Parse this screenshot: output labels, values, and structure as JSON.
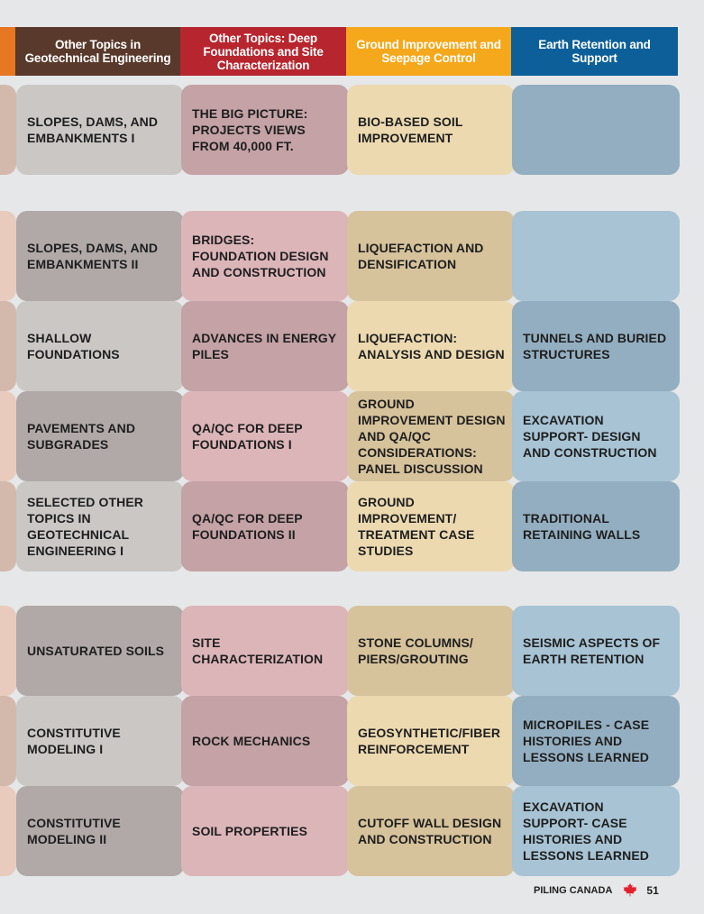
{
  "headers": {
    "col1": "Other Topics in Geotechnical Engineering",
    "col2": "Other Topics: Deep Foundations and Site Characterization",
    "col3": "Ground Improvement and Seepage Control",
    "col4": "Earth Retention and Support"
  },
  "colors": {
    "stub_header": "#e87722",
    "col1_header": "#58392b",
    "col2_header": "#b7262e",
    "col3_header": "#f5a81c",
    "col4_header": "#0c5f99",
    "leaf": "#e4202e"
  },
  "rows": {
    "r1": {
      "col1": "SLOPES, DAMS, AND EMBANKMENTS I",
      "col2": "THE BIG PICTURE: PROJECTS VIEWS FROM 40,000 FT.",
      "col3": "BIO-BASED SOIL IMPROVEMENT",
      "col4": ""
    },
    "r2": {
      "col1": "SLOPES, DAMS, AND EMBANKMENTS II",
      "col2": "BRIDGES: FOUNDATION DESIGN AND CONSTRUCTION",
      "col3": "LIQUEFACTION AND DENSIFICATION",
      "col4": ""
    },
    "r3": {
      "col1": "SHALLOW FOUNDATIONS",
      "col2": "ADVANCES IN ENERGY PILES",
      "col3": "LIQUEFACTION: ANALYSIS AND DESIGN",
      "col4": "TUNNELS AND BURIED STRUCTURES"
    },
    "r4": {
      "col1": "PAVEMENTS AND SUBGRADES",
      "col2": "QA/QC FOR DEEP FOUNDATIONS I",
      "col3": "GROUND IMPROVEMENT DESIGN AND QA/QC CONSIDERATIONS: PANEL DISCUSSION",
      "col4": "EXCAVATION SUPPORT- DESIGN AND CONSTRUCTION"
    },
    "r5": {
      "col1": "SELECTED OTHER TOPICS IN GEOTECHNICAL ENGINEERING I",
      "col2": "QA/QC FOR DEEP FOUNDATIONS II",
      "col3": "GROUND IMPROVEMENT/ TREATMENT CASE STUDIES",
      "col4": "TRADITIONAL RETAINING WALLS"
    },
    "r6": {
      "col1": "UNSATURATED SOILS",
      "col2": "SITE CHARACTERIZATION",
      "col3": "STONE COLUMNS/ PIERS/GROUTING",
      "col4": "SEISMIC ASPECTS OF EARTH RETENTION"
    },
    "r7": {
      "col1": "CONSTITUTIVE MODELING I",
      "col2": "ROCK MECHANICS",
      "col3": "GEOSYNTHETIC/FIBER REINFORCEMENT",
      "col4": "MICROPILES  - CASE HISTORIES AND LESSONS LEARNED"
    },
    "r8": {
      "col1": "CONSTITUTIVE MODELING II",
      "col2": "SOIL PROPERTIES",
      "col3": "CUTOFF WALL DESIGN AND CONSTRUCTION",
      "col4": "EXCAVATION SUPPORT- CASE HISTORIES AND LESSONS LEARNED"
    }
  },
  "footer": {
    "publication": "PILING CANADA",
    "leaf_icon": "maple-leaf-icon",
    "page_number": "51"
  }
}
